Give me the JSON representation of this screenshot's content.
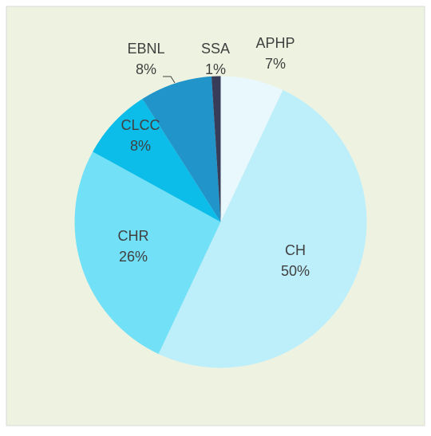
{
  "chart_data": {
    "type": "pie",
    "categories": [
      "APHP",
      "CH",
      "CHR",
      "CLCC",
      "EBNL",
      "SSA"
    ],
    "values": [
      7,
      50,
      26,
      8,
      8,
      1
    ],
    "value_labels": [
      "7%",
      "50%",
      "26%",
      "8%",
      "8%",
      "1%"
    ],
    "colors": [
      "#e8f8fd",
      "#bdeffb",
      "#72e0f7",
      "#0bbde8",
      "#2195c9",
      "#383c58"
    ]
  }
}
